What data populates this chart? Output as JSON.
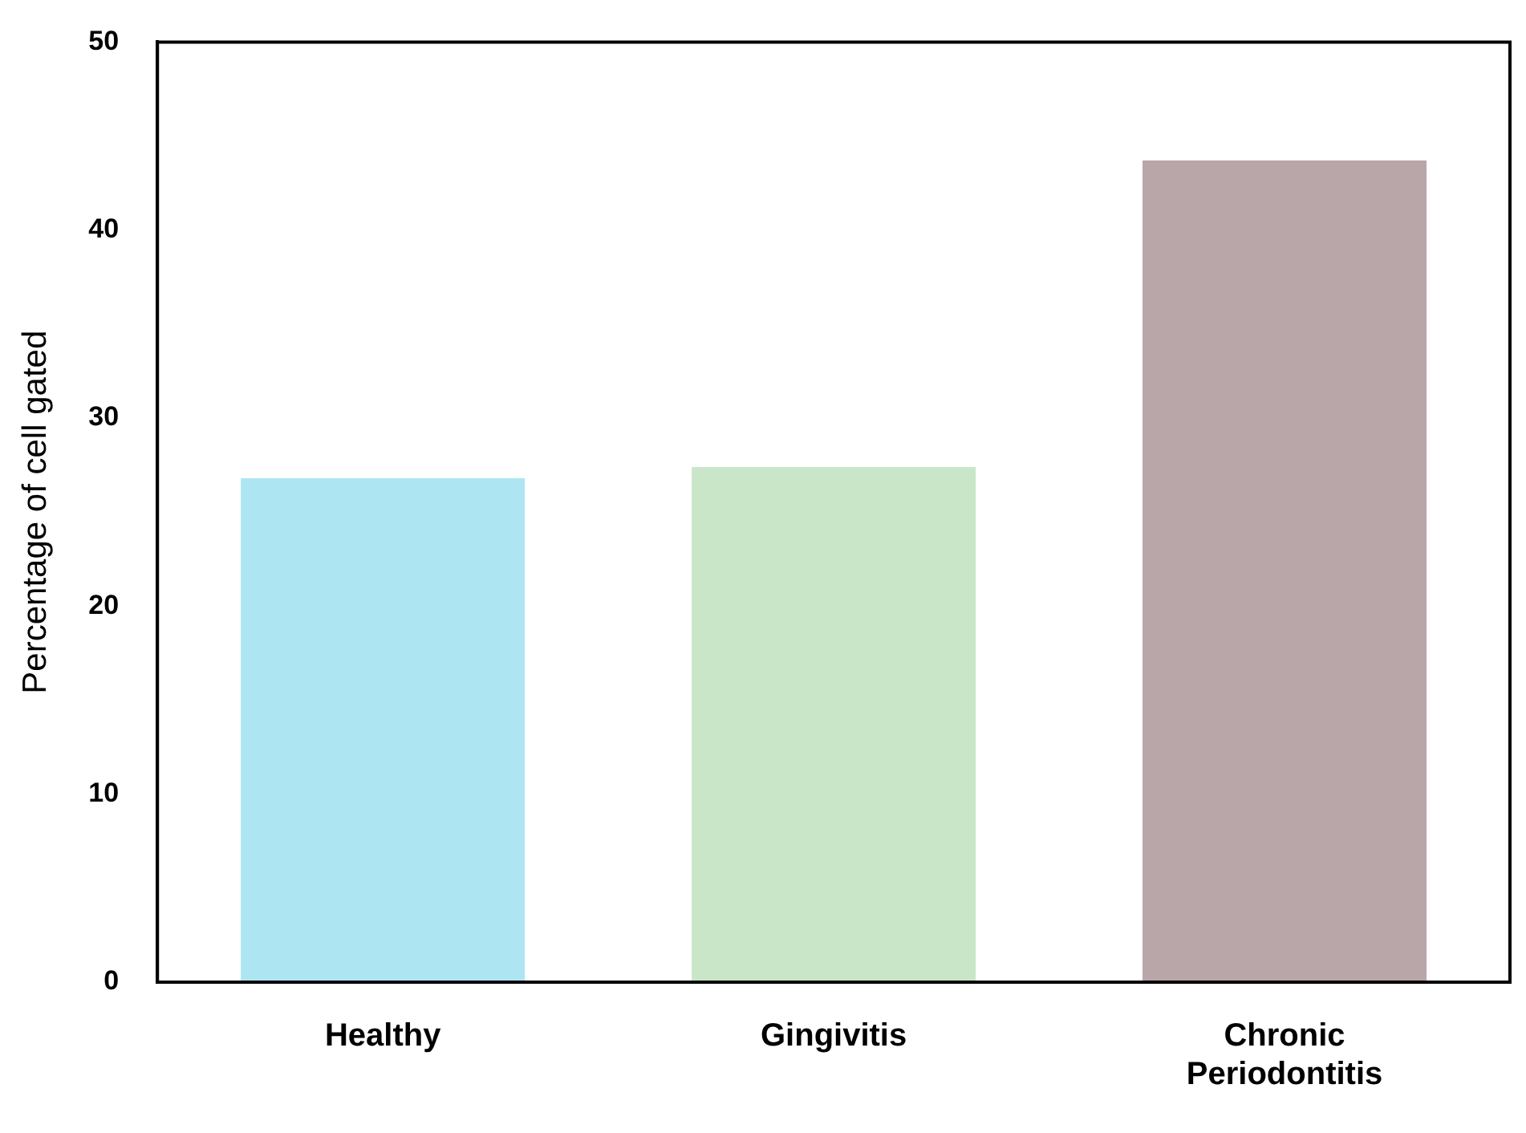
{
  "chart_data": {
    "type": "bar",
    "ylabel": "Percentage of cell gated",
    "categories": [
      "Healthy",
      "Gingivitis",
      "Chronic Periodontitis"
    ],
    "values": [
      26.8,
      27.4,
      43.7
    ],
    "colors": [
      "#ade6f2",
      "#cae6c8",
      "#b9a6a8"
    ],
    "ylim": [
      0,
      50
    ],
    "yticks": [
      0,
      10,
      20,
      30,
      40,
      50
    ],
    "grid": false,
    "legend": false
  }
}
